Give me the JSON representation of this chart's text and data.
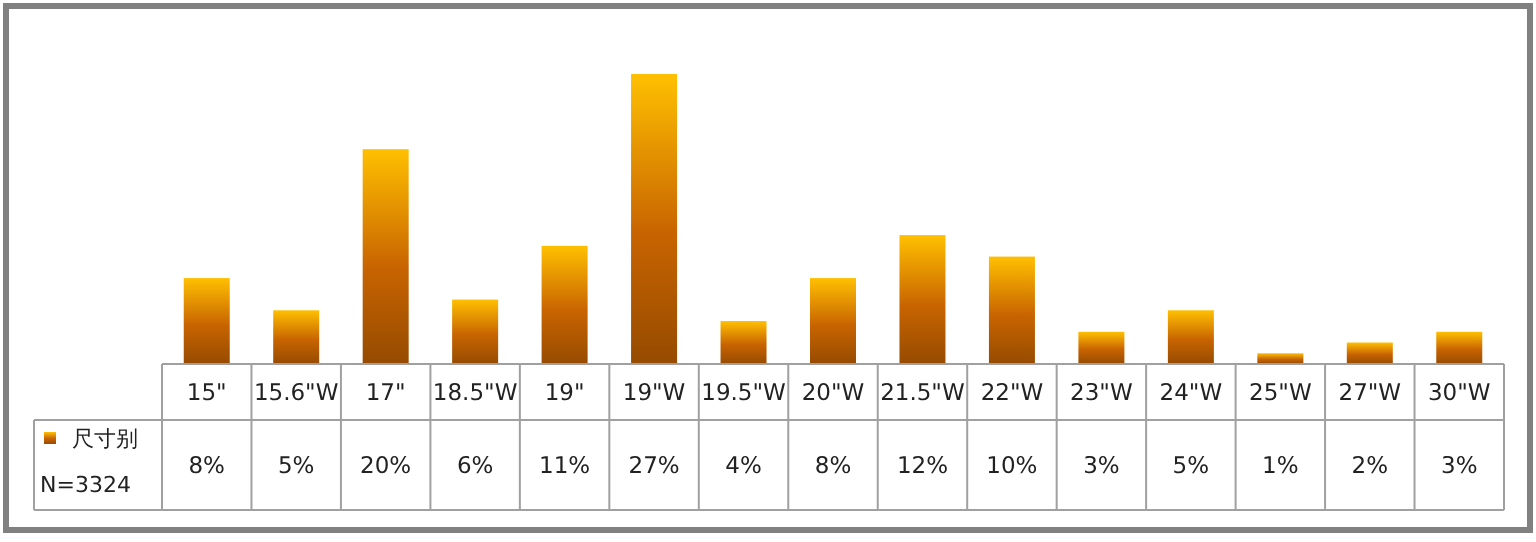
{
  "chart_data": {
    "type": "bar",
    "categories": [
      "15\"",
      "15.6\"W",
      "17\"",
      "18.5\"W",
      "19\"",
      "19\"W",
      "19.5\"W",
      "20\"W",
      "21.5\"W",
      "22\"W",
      "23\"W",
      "24\"W",
      "25\"W",
      "27\"W",
      "30\"W"
    ],
    "series": [
      {
        "name": "尺寸别",
        "color": "#c86400",
        "values": [
          8,
          5,
          20,
          6,
          11,
          27,
          4,
          8,
          12,
          10,
          3,
          5,
          1,
          2,
          3
        ],
        "value_labels": [
          "8%",
          "5%",
          "20%",
          "6%",
          "11%",
          "27%",
          "4%",
          "8%",
          "12%",
          "10%",
          "3%",
          "5%",
          "1%",
          "2%",
          "3%"
        ]
      }
    ],
    "annotations": [
      "N=3324"
    ],
    "legend": "bottom left"
  }
}
